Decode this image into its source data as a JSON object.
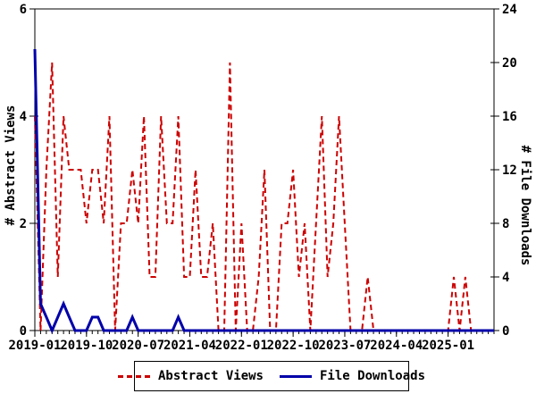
{
  "chart_data": {
    "type": "line",
    "title": "",
    "x_start": "2019-01",
    "x_end": "2025-09",
    "x_tick_labels": [
      "2019-01",
      "2019-10",
      "2020-07",
      "2021-04",
      "2022-01",
      "2022-10",
      "2023-07",
      "2024-04",
      "2025-01"
    ],
    "x_tick_month_indices": [
      0,
      9,
      18,
      27,
      36,
      45,
      54,
      63,
      72
    ],
    "left_axis": {
      "label": "# Abstract Views",
      "min": 0,
      "max": 6,
      "ticks": [
        0,
        2,
        4,
        6
      ]
    },
    "right_axis": {
      "label": "# File Downloads",
      "min": 0,
      "max": 24,
      "ticks": [
        0,
        4,
        8,
        12,
        16,
        20,
        24
      ]
    },
    "grid": false,
    "legend_position": "bottom-center",
    "series": [
      {
        "name": "Abstract Views",
        "axis": "left",
        "style": "dashed",
        "color": "#CC0000",
        "values": [
          4,
          0,
          3,
          5,
          1,
          4,
          3,
          3,
          3,
          2,
          3,
          3,
          2,
          4,
          0,
          2,
          2,
          3,
          2,
          4,
          1,
          1,
          4,
          2,
          2,
          4,
          1,
          1,
          3,
          1,
          1,
          2,
          0,
          0,
          5,
          0,
          2,
          0,
          0,
          1,
          3,
          0,
          0,
          2,
          2,
          3,
          1,
          2,
          0,
          2,
          4,
          1,
          2,
          4,
          2,
          0,
          0,
          0,
          1,
          0,
          0,
          0,
          0,
          0,
          0,
          0,
          0,
          0,
          0,
          0,
          0,
          0,
          0,
          1,
          0,
          1,
          0,
          0,
          0,
          0,
          0
        ]
      },
      {
        "name": "File Downloads",
        "axis": "right",
        "style": "solid",
        "color": "#0000AA",
        "values": [
          21,
          2,
          1,
          0,
          1,
          2,
          1,
          0,
          0,
          0,
          1,
          1,
          0,
          0,
          0,
          0,
          0,
          1,
          0,
          0,
          0,
          0,
          0,
          0,
          0,
          1,
          0,
          0,
          0,
          0,
          0,
          0,
          0,
          0,
          0,
          0,
          0,
          0,
          0,
          0,
          0,
          0,
          0,
          0,
          0,
          0,
          0,
          0,
          0,
          0,
          0,
          0,
          0,
          0,
          0,
          0,
          0,
          0,
          0,
          0,
          0,
          0,
          0,
          0,
          0,
          0,
          0,
          0,
          0,
          0,
          0,
          0,
          0,
          0,
          0,
          0,
          0,
          0,
          0,
          0,
          0
        ]
      }
    ]
  },
  "colors": {
    "abstract_views": "#CC0000",
    "file_downloads": "#0000AA",
    "axis": "#000000",
    "background": "#FFFFFF"
  }
}
